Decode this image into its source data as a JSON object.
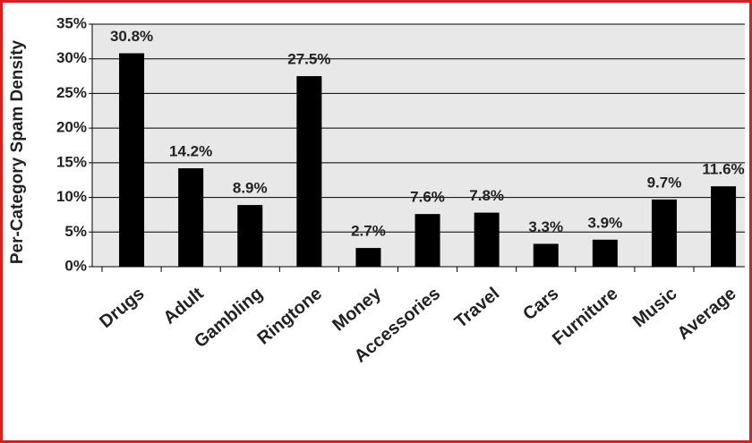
{
  "chart_data": {
    "type": "bar",
    "y_label": "Per-Category Spam Density",
    "categories": [
      "Drugs",
      "Adult",
      "Gambling",
      "Ringtone",
      "Money",
      "Accessories",
      "Travel",
      "Cars",
      "Furniture",
      "Music",
      "Average"
    ],
    "values": [
      30.8,
      14.2,
      8.9,
      27.5,
      2.7,
      7.6,
      7.8,
      3.3,
      3.9,
      9.7,
      11.6
    ],
    "value_labels": [
      "30.8%",
      "14.2%",
      "8.9%",
      "27.5%",
      "2.7%",
      "7.6%",
      "7.8%",
      "3.3%",
      "3.9%",
      "9.7%",
      "11.6%"
    ],
    "color": "#000000",
    "ylim": [
      0,
      35
    ],
    "yticks": [
      {
        "value": 0,
        "label": "0%"
      },
      {
        "value": 5,
        "label": "5%"
      },
      {
        "value": 10,
        "label": "10%"
      },
      {
        "value": 15,
        "label": "15%"
      },
      {
        "value": 20,
        "label": "20%"
      },
      {
        "value": 25,
        "label": "25%"
      },
      {
        "value": 30,
        "label": "30%"
      },
      {
        "value": 35,
        "label": "35%"
      }
    ],
    "grid": true
  }
}
